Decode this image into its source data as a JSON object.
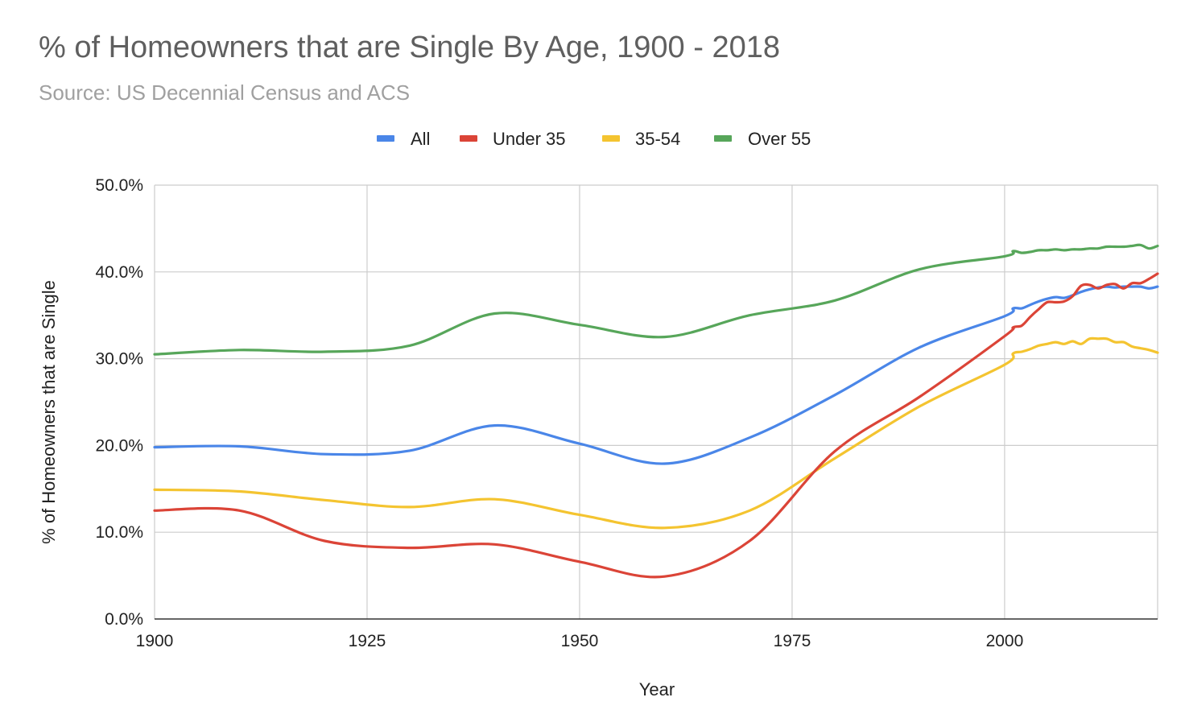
{
  "title": "% of Homeowners that are Single By Age, 1900 - 2018",
  "subtitle": "Source: US Decennial Census and ACS",
  "chart_data": {
    "type": "line",
    "xlabel": "Year",
    "ylabel": "% of Homeowners that are Single",
    "xlim": [
      1900,
      2018
    ],
    "ylim": [
      0,
      50
    ],
    "x_ticks": [
      {
        "value": 1900,
        "label": "1900"
      },
      {
        "value": 1925,
        "label": "1925"
      },
      {
        "value": 1950,
        "label": "1950"
      },
      {
        "value": 1975,
        "label": "1975"
      },
      {
        "value": 2000,
        "label": "2000"
      }
    ],
    "y_ticks": [
      {
        "value": 0,
        "label": "0.0%"
      },
      {
        "value": 10,
        "label": "10.0%"
      },
      {
        "value": 20,
        "label": "20.0%"
      },
      {
        "value": 30,
        "label": "30.0%"
      },
      {
        "value": 40,
        "label": "40.0%"
      },
      {
        "value": 50,
        "label": "50.0%"
      }
    ],
    "grid": true,
    "legend_position": "top",
    "series": [
      {
        "name": "All",
        "color": "#4a86e8",
        "points": [
          [
            1900,
            19.8
          ],
          [
            1910,
            19.9
          ],
          [
            1920,
            19.0
          ],
          [
            1930,
            19.4
          ],
          [
            1940,
            22.3
          ],
          [
            1950,
            20.2
          ],
          [
            1960,
            17.9
          ],
          [
            1970,
            20.9
          ],
          [
            1980,
            25.8
          ],
          [
            1990,
            31.3
          ],
          [
            2000,
            34.9
          ],
          [
            2001,
            35.8
          ],
          [
            2002,
            35.8
          ],
          [
            2003,
            36.2
          ],
          [
            2004,
            36.6
          ],
          [
            2005,
            36.9
          ],
          [
            2006,
            37.1
          ],
          [
            2007,
            37.0
          ],
          [
            2008,
            37.3
          ],
          [
            2009,
            37.7
          ],
          [
            2010,
            38.0
          ],
          [
            2011,
            38.2
          ],
          [
            2012,
            38.3
          ],
          [
            2013,
            38.2
          ],
          [
            2014,
            38.3
          ],
          [
            2015,
            38.3
          ],
          [
            2016,
            38.3
          ],
          [
            2017,
            38.1
          ],
          [
            2018,
            38.3
          ]
        ]
      },
      {
        "name": "Under 35",
        "color": "#db4437",
        "points": [
          [
            1900,
            12.5
          ],
          [
            1910,
            12.5
          ],
          [
            1920,
            9.0
          ],
          [
            1930,
            8.2
          ],
          [
            1940,
            8.6
          ],
          [
            1950,
            6.6
          ],
          [
            1960,
            4.9
          ],
          [
            1970,
            9.0
          ],
          [
            1980,
            19.3
          ],
          [
            1990,
            25.6
          ],
          [
            2000,
            32.6
          ],
          [
            2001,
            33.6
          ],
          [
            2002,
            33.8
          ],
          [
            2003,
            34.8
          ],
          [
            2004,
            35.7
          ],
          [
            2005,
            36.5
          ],
          [
            2006,
            36.5
          ],
          [
            2007,
            36.6
          ],
          [
            2008,
            37.2
          ],
          [
            2009,
            38.4
          ],
          [
            2010,
            38.5
          ],
          [
            2011,
            38.1
          ],
          [
            2012,
            38.5
          ],
          [
            2013,
            38.6
          ],
          [
            2014,
            38.1
          ],
          [
            2015,
            38.7
          ],
          [
            2016,
            38.7
          ],
          [
            2017,
            39.2
          ],
          [
            2018,
            39.8
          ]
        ]
      },
      {
        "name": "35-54",
        "color": "#f4c430",
        "points": [
          [
            1900,
            14.9
          ],
          [
            1910,
            14.7
          ],
          [
            1920,
            13.7
          ],
          [
            1930,
            12.9
          ],
          [
            1940,
            13.8
          ],
          [
            1950,
            12.0
          ],
          [
            1960,
            10.5
          ],
          [
            1970,
            12.5
          ],
          [
            1980,
            18.5
          ],
          [
            1990,
            24.5
          ],
          [
            2000,
            29.3
          ],
          [
            2001,
            30.6
          ],
          [
            2002,
            30.8
          ],
          [
            2003,
            31.1
          ],
          [
            2004,
            31.5
          ],
          [
            2005,
            31.7
          ],
          [
            2006,
            31.9
          ],
          [
            2007,
            31.7
          ],
          [
            2008,
            32.0
          ],
          [
            2009,
            31.7
          ],
          [
            2010,
            32.3
          ],
          [
            2011,
            32.3
          ],
          [
            2012,
            32.3
          ],
          [
            2013,
            31.9
          ],
          [
            2014,
            31.9
          ],
          [
            2015,
            31.4
          ],
          [
            2016,
            31.2
          ],
          [
            2017,
            31.0
          ],
          [
            2018,
            30.7
          ]
        ]
      },
      {
        "name": "Over 55",
        "color": "#57a65a",
        "points": [
          [
            1900,
            30.5
          ],
          [
            1910,
            31.0
          ],
          [
            1920,
            30.8
          ],
          [
            1930,
            31.5
          ],
          [
            1940,
            35.2
          ],
          [
            1950,
            33.9
          ],
          [
            1960,
            32.5
          ],
          [
            1970,
            35.0
          ],
          [
            1980,
            36.7
          ],
          [
            1990,
            40.3
          ],
          [
            2000,
            41.8
          ],
          [
            2001,
            42.4
          ],
          [
            2002,
            42.2
          ],
          [
            2003,
            42.3
          ],
          [
            2004,
            42.5
          ],
          [
            2005,
            42.5
          ],
          [
            2006,
            42.6
          ],
          [
            2007,
            42.5
          ],
          [
            2008,
            42.6
          ],
          [
            2009,
            42.6
          ],
          [
            2010,
            42.7
          ],
          [
            2011,
            42.7
          ],
          [
            2012,
            42.9
          ],
          [
            2013,
            42.9
          ],
          [
            2014,
            42.9
          ],
          [
            2015,
            43.0
          ],
          [
            2016,
            43.1
          ],
          [
            2017,
            42.7
          ],
          [
            2018,
            43.0
          ]
        ]
      }
    ]
  }
}
